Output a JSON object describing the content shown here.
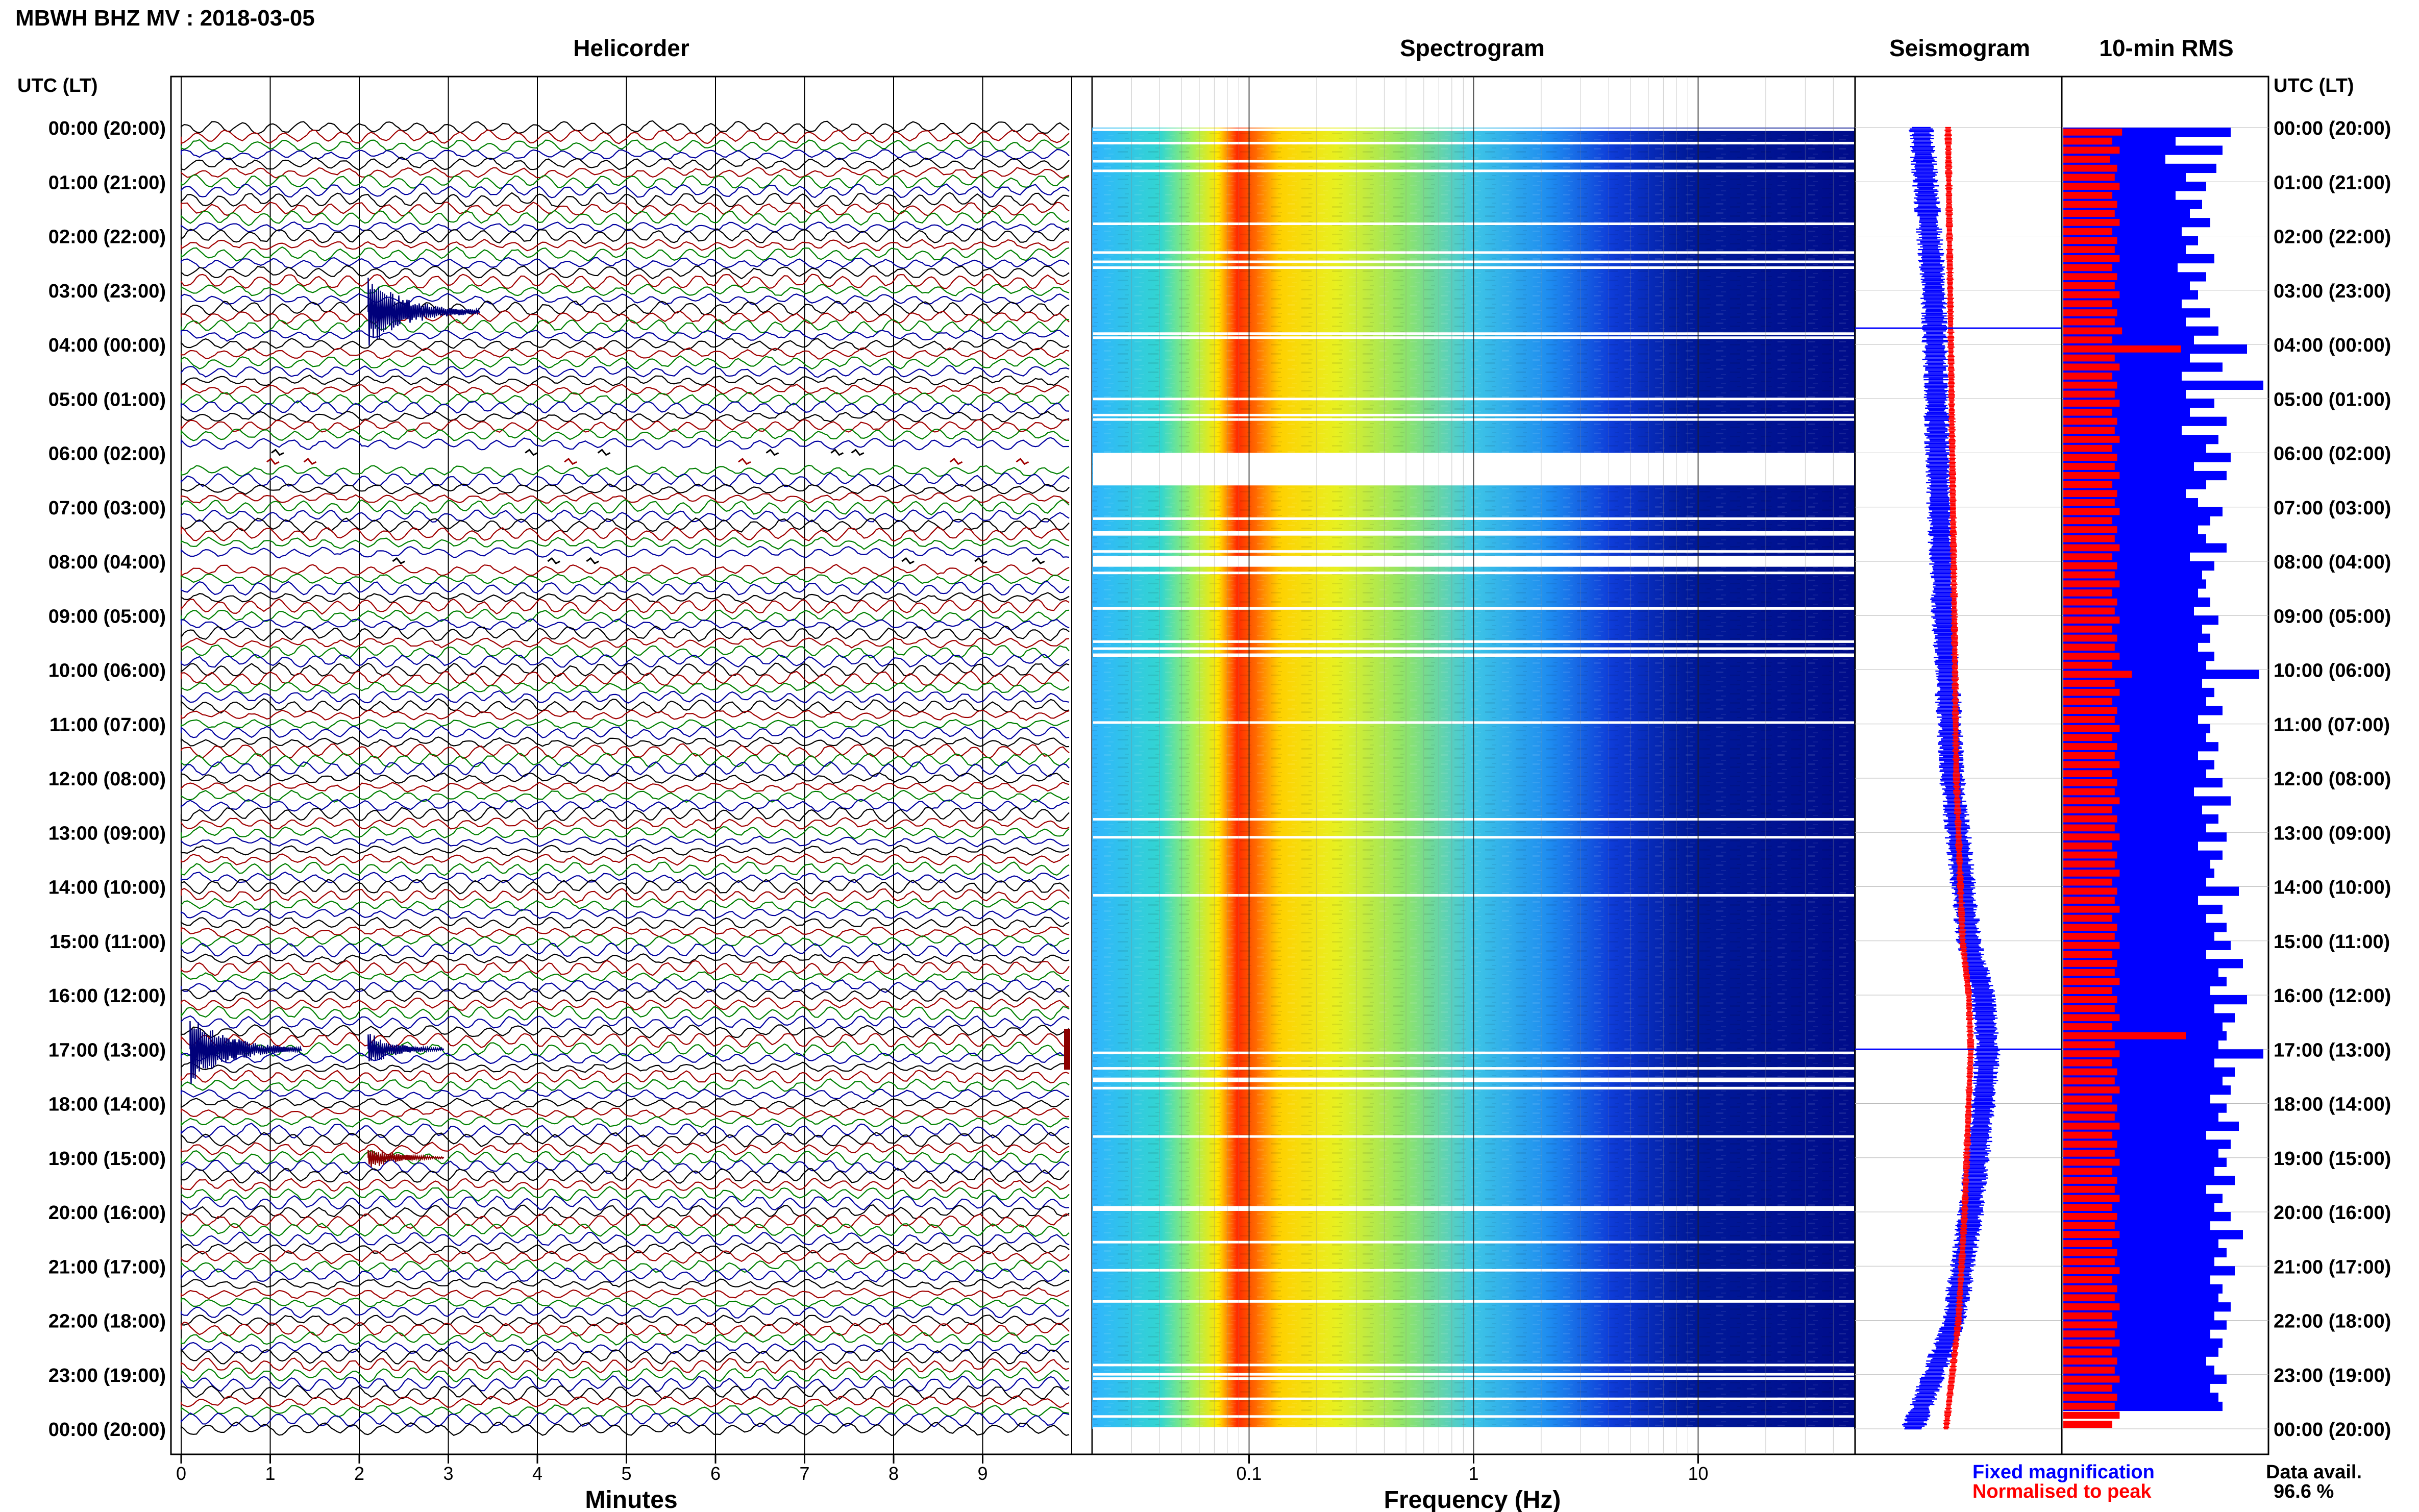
{
  "page_title": "MBWH BHZ MV : 2018-03-05",
  "panels": {
    "helicorder": "Helicorder",
    "spectrogram": "Spectrogram",
    "seismogram": "Seismogram",
    "rms": "10-min RMS"
  },
  "time_axis_label_left": "UTC (LT)",
  "time_axis_label_right": "UTC (LT)",
  "time_labels": [
    "00:00 (20:00)",
    "01:00 (21:00)",
    "02:00 (22:00)",
    "03:00 (23:00)",
    "04:00 (00:00)",
    "05:00 (01:00)",
    "06:00 (02:00)",
    "07:00 (03:00)",
    "08:00 (04:00)",
    "09:00 (05:00)",
    "10:00 (06:00)",
    "11:00 (07:00)",
    "12:00 (08:00)",
    "13:00 (09:00)",
    "14:00 (10:00)",
    "15:00 (11:00)",
    "16:00 (12:00)",
    "17:00 (13:00)",
    "18:00 (14:00)",
    "19:00 (15:00)",
    "20:00 (16:00)",
    "21:00 (17:00)",
    "22:00 (18:00)",
    "23:00 (19:00)",
    "00:00 (20:00)"
  ],
  "minutes_axis": {
    "label": "Minutes",
    "ticks": [
      "0",
      "1",
      "2",
      "3",
      "4",
      "5",
      "6",
      "7",
      "8",
      "9"
    ]
  },
  "frequency_axis": {
    "label": "Frequency (Hz)",
    "ticks": [
      "0.1",
      "1",
      "10"
    ]
  },
  "legend": {
    "fixed_magnification": "Fixed magnification",
    "normalised_to_peak": "Normalised to peak"
  },
  "data_availability": {
    "label": "Data avail.",
    "value": "96.6 %"
  },
  "colors": {
    "trace_cycle": [
      "#000000",
      "#a00000",
      "#008000",
      "#0000a0"
    ],
    "fixed_magnification": "#0000ff",
    "normalised_to_peak": "#ff0000",
    "spectrogram_background": "#00008b",
    "event": "#00007a"
  },
  "chart_data": [
    {
      "type": "line",
      "name": "helicorder",
      "xlabel": "Minutes",
      "xlim": [
        0,
        10
      ],
      "lines_per_hour": 6,
      "line_count": 145,
      "gaps_hours": [
        [
          6.0,
          6.3
        ],
        [
          7.9,
          8.1
        ]
      ],
      "events": [
        {
          "hour": 3.4,
          "minute": 2.1,
          "amplitude": "large"
        },
        {
          "hour": 17.0,
          "minute": 0.1,
          "amplitude": "large"
        },
        {
          "hour": 17.0,
          "minute": 2.1,
          "amplitude": "medium"
        },
        {
          "hour": 19.0,
          "minute": 2.1,
          "amplitude": "small"
        }
      ]
    },
    {
      "type": "heatmap",
      "name": "spectrogram",
      "xlabel": "Frequency (Hz)",
      "x_scale": "log",
      "xlim": [
        0.02,
        50
      ],
      "peak_band_hz": [
        0.1,
        0.2
      ],
      "gaps_hours": [
        [
          6.0,
          6.6
        ],
        [
          7.9,
          8.1
        ]
      ]
    },
    {
      "type": "line",
      "name": "seismogram",
      "series": [
        {
          "name": "Fixed magnification",
          "hours": [
            0,
            3,
            6,
            9,
            12,
            15,
            16,
            17,
            18,
            20,
            22,
            24
          ],
          "offset": [
            -0.18,
            -0.12,
            -0.1,
            -0.07,
            -0.03,
            0.05,
            0.12,
            0.14,
            0.12,
            0.06,
            -0.02,
            -0.22
          ]
        },
        {
          "name": "Normalised to peak",
          "hours": [
            0,
            3,
            6,
            9,
            12,
            15,
            16,
            17,
            18,
            20,
            22,
            24
          ],
          "offset": [
            -0.05,
            -0.04,
            -0.03,
            -0.02,
            -0.01,
            0.02,
            0.05,
            0.06,
            0.05,
            0.03,
            0.0,
            -0.06
          ]
        }
      ],
      "spikes_hours": [
        3.7,
        17.0
      ]
    },
    {
      "type": "bar",
      "name": "10-min RMS",
      "bins_per_hour": 6,
      "series": [
        {
          "name": "Fixed magnification",
          "values": [
            0.82,
            0.55,
            0.78,
            0.5,
            0.75,
            0.6,
            0.7,
            0.55,
            0.68,
            0.62,
            0.72,
            0.58,
            0.66,
            0.6,
            0.74,
            0.56,
            0.7,
            0.62,
            0.66,
            0.58,
            0.72,
            0.6,
            0.76,
            0.64,
            0.9,
            0.62,
            0.78,
            0.58,
            0.98,
            0.6,
            0.74,
            0.62,
            0.8,
            0.58,
            0.76,
            0.7,
            0.82,
            0.64,
            0.8,
            0.7,
            0.6,
            0.66,
            0.78,
            0.72,
            0.66,
            0.7,
            0.8,
            0.62,
            0.74,
            0.68,
            0.7,
            0.66,
            0.72,
            0.64,
            0.76,
            0.68,
            0.72,
            0.66,
            0.74,
            0.7,
            0.96,
            0.68,
            0.74,
            0.7,
            0.78,
            0.66,
            0.72,
            0.7,
            0.76,
            0.66,
            0.74,
            0.7,
            0.78,
            0.64,
            0.82,
            0.68,
            0.76,
            0.7,
            0.8,
            0.66,
            0.78,
            0.72,
            0.74,
            0.7,
            0.86,
            0.66,
            0.78,
            0.7,
            0.8,
            0.74,
            0.82,
            0.7,
            0.88,
            0.76,
            0.8,
            0.72,
            0.9,
            0.74,
            0.84,
            0.78,
            0.8,
            0.76,
            0.98,
            0.74,
            0.84,
            0.78,
            0.82,
            0.72,
            0.8,
            0.76,
            0.86,
            0.7,
            0.82,
            0.76,
            0.8,
            0.74,
            0.84,
            0.7,
            0.78,
            0.74,
            0.82,
            0.72,
            0.88,
            0.76,
            0.8,
            0.74,
            0.84,
            0.72,
            0.78,
            0.76,
            0.82,
            0.74,
            0.8,
            0.72,
            0.78,
            0.76,
            0.7,
            0.74,
            0.8,
            0.72,
            0.76,
            0.78
          ],
          "peak_hours": [
            3.7,
            17.0
          ]
        },
        {
          "name": "Normalised to peak",
          "values": [
            0.48,
            0.4,
            0.46,
            0.38,
            0.44,
            0.42,
            0.46,
            0.4,
            0.44,
            0.42,
            0.46,
            0.4,
            0.44,
            0.42,
            0.46,
            0.4,
            0.44,
            0.42,
            0.46,
            0.4,
            0.44,
            0.42,
            0.48,
            0.4,
            0.96,
            0.42,
            0.46,
            0.4,
            0.44,
            0.42,
            0.46,
            0.4,
            0.44,
            0.42,
            0.46,
            0.4,
            0.44,
            0.42,
            0.46,
            0.4,
            0.44,
            0.42,
            0.46,
            0.4,
            0.44,
            0.42,
            0.46,
            0.4,
            0.44,
            0.42,
            0.46,
            0.4,
            0.44,
            0.42,
            0.46,
            0.4,
            0.44,
            0.42,
            0.46,
            0.4,
            0.56,
            0.42,
            0.46,
            0.4,
            0.44,
            0.42,
            0.46,
            0.4,
            0.44,
            0.42,
            0.46,
            0.4,
            0.44,
            0.42,
            0.46,
            0.4,
            0.44,
            0.42,
            0.46,
            0.4,
            0.44,
            0.42,
            0.46,
            0.4,
            0.44,
            0.42,
            0.46,
            0.4,
            0.44,
            0.42,
            0.46,
            0.4,
            0.44,
            0.42,
            0.46,
            0.4,
            0.44,
            0.42,
            0.46,
            0.4,
            1.0,
            0.42,
            0.46,
            0.4,
            0.44,
            0.42,
            0.46,
            0.4,
            0.44,
            0.42,
            0.46,
            0.4,
            0.44,
            0.42,
            0.46,
            0.4,
            0.44,
            0.42,
            0.46,
            0.4,
            0.44,
            0.42,
            0.46,
            0.4,
            0.44,
            0.42,
            0.46,
            0.4,
            0.44,
            0.42,
            0.46,
            0.4,
            0.44,
            0.42,
            0.46,
            0.4,
            0.44,
            0.42,
            0.46,
            0.4,
            0.44,
            0.42,
            0.46,
            0.4
          ]
        }
      ]
    }
  ]
}
